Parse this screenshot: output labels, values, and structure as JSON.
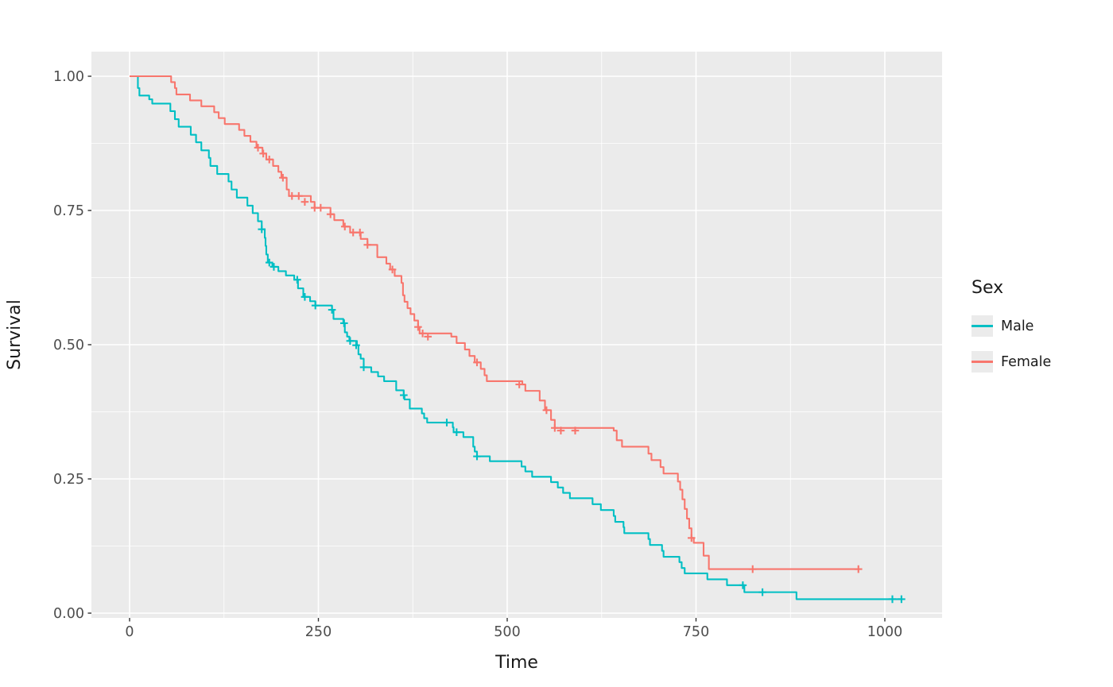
{
  "chart_data": {
    "type": "line",
    "subtype": "kaplan-meier-step-survival-curve",
    "title": "",
    "xlabel": "Time",
    "ylabel": "Survival",
    "x_ticks": [
      0,
      250,
      500,
      750,
      1000
    ],
    "y_ticks": [
      0,
      0.25,
      0.5,
      0.75,
      1
    ],
    "x_minor_ticks": [
      125,
      375,
      625,
      875
    ],
    "y_minor_ticks": [
      0.125,
      0.375,
      0.625,
      0.875
    ],
    "xlim": [
      -51,
      1075
    ],
    "ylim": [
      -0.009,
      1.046
    ],
    "grid": true,
    "panel_background": "#EBEBEB",
    "grid_color": "#FFFFFF",
    "tick_label_color": "#4D4D4D",
    "axis_title_color": "#1a1a1a",
    "legend": {
      "title": "Sex",
      "position": "right"
    },
    "series": [
      {
        "name": "Male",
        "color": "#00BFC4",
        "points": [
          [
            0,
            1.0
          ],
          [
            11,
            0.978
          ],
          [
            13,
            0.964
          ],
          [
            26,
            0.957
          ],
          [
            30,
            0.949
          ],
          [
            54,
            0.935
          ],
          [
            60,
            0.92
          ],
          [
            65,
            0.906
          ],
          [
            81,
            0.891
          ],
          [
            88,
            0.877
          ],
          [
            95,
            0.862
          ],
          [
            105,
            0.848
          ],
          [
            107,
            0.833
          ],
          [
            116,
            0.818
          ],
          [
            131,
            0.804
          ],
          [
            135,
            0.789
          ],
          [
            142,
            0.774
          ],
          [
            156,
            0.759
          ],
          [
            163,
            0.745
          ],
          [
            170,
            0.73
          ],
          [
            175,
            0.715
          ],
          [
            179,
            0.699
          ],
          [
            180,
            0.684
          ],
          [
            181,
            0.668
          ],
          [
            183,
            0.653
          ],
          [
            189,
            0.645
          ],
          [
            197,
            0.637
          ],
          [
            207,
            0.629
          ],
          [
            218,
            0.621
          ],
          [
            223,
            0.605
          ],
          [
            230,
            0.589
          ],
          [
            239,
            0.581
          ],
          [
            246,
            0.573
          ],
          [
            268,
            0.565
          ],
          [
            270,
            0.548
          ],
          [
            283,
            0.54
          ],
          [
            285,
            0.523
          ],
          [
            288,
            0.515
          ],
          [
            291,
            0.507
          ],
          [
            301,
            0.499
          ],
          [
            303,
            0.482
          ],
          [
            306,
            0.474
          ],
          [
            310,
            0.458
          ],
          [
            320,
            0.449
          ],
          [
            329,
            0.441
          ],
          [
            337,
            0.432
          ],
          [
            353,
            0.415
          ],
          [
            363,
            0.406
          ],
          [
            364,
            0.398
          ],
          [
            371,
            0.381
          ],
          [
            387,
            0.372
          ],
          [
            390,
            0.363
          ],
          [
            394,
            0.355
          ],
          [
            428,
            0.346
          ],
          [
            429,
            0.337
          ],
          [
            442,
            0.328
          ],
          [
            455,
            0.31
          ],
          [
            457,
            0.301
          ],
          [
            460,
            0.292
          ],
          [
            477,
            0.283
          ],
          [
            519,
            0.273
          ],
          [
            524,
            0.264
          ],
          [
            533,
            0.254
          ],
          [
            558,
            0.244
          ],
          [
            567,
            0.234
          ],
          [
            574,
            0.224
          ],
          [
            583,
            0.214
          ],
          [
            613,
            0.203
          ],
          [
            624,
            0.192
          ],
          [
            641,
            0.181
          ],
          [
            643,
            0.17
          ],
          [
            654,
            0.16
          ],
          [
            655,
            0.149
          ],
          [
            687,
            0.138
          ],
          [
            689,
            0.127
          ],
          [
            705,
            0.116
          ],
          [
            707,
            0.105
          ],
          [
            728,
            0.095
          ],
          [
            731,
            0.084
          ],
          [
            735,
            0.074
          ],
          [
            765,
            0.063
          ],
          [
            791,
            0.052
          ],
          [
            814,
            0.039
          ],
          [
            883,
            0.026
          ],
          [
            1022,
            0.026
          ]
        ],
        "censored": [
          [
            175,
            0.715
          ],
          [
            185,
            0.653
          ],
          [
            191,
            0.645
          ],
          [
            222,
            0.621
          ],
          [
            232,
            0.589
          ],
          [
            246,
            0.573
          ],
          [
            268,
            0.565
          ],
          [
            284,
            0.54
          ],
          [
            292,
            0.507
          ],
          [
            300,
            0.499
          ],
          [
            310,
            0.458
          ],
          [
            363,
            0.406
          ],
          [
            420,
            0.355
          ],
          [
            433,
            0.337
          ],
          [
            460,
            0.292
          ],
          [
            812,
            0.052
          ],
          [
            838,
            0.039
          ],
          [
            1010,
            0.026
          ],
          [
            1022,
            0.026
          ]
        ]
      },
      {
        "name": "Female",
        "color": "#F8766D",
        "points": [
          [
            0,
            1.0
          ],
          [
            55,
            0.989
          ],
          [
            60,
            0.978
          ],
          [
            62,
            0.966
          ],
          [
            80,
            0.955
          ],
          [
            95,
            0.944
          ],
          [
            112,
            0.933
          ],
          [
            118,
            0.922
          ],
          [
            126,
            0.911
          ],
          [
            145,
            0.9
          ],
          [
            152,
            0.889
          ],
          [
            160,
            0.878
          ],
          [
            168,
            0.867
          ],
          [
            176,
            0.856
          ],
          [
            181,
            0.845
          ],
          [
            190,
            0.833
          ],
          [
            197,
            0.822
          ],
          [
            201,
            0.811
          ],
          [
            208,
            0.789
          ],
          [
            211,
            0.777
          ],
          [
            240,
            0.766
          ],
          [
            245,
            0.755
          ],
          [
            266,
            0.743
          ],
          [
            271,
            0.732
          ],
          [
            283,
            0.72
          ],
          [
            292,
            0.709
          ],
          [
            306,
            0.697
          ],
          [
            315,
            0.686
          ],
          [
            328,
            0.663
          ],
          [
            340,
            0.651
          ],
          [
            345,
            0.64
          ],
          [
            351,
            0.628
          ],
          [
            360,
            0.615
          ],
          [
            362,
            0.592
          ],
          [
            364,
            0.58
          ],
          [
            368,
            0.568
          ],
          [
            372,
            0.557
          ],
          [
            377,
            0.545
          ],
          [
            382,
            0.533
          ],
          [
            384,
            0.521
          ],
          [
            426,
            0.515
          ],
          [
            433,
            0.503
          ],
          [
            444,
            0.491
          ],
          [
            450,
            0.479
          ],
          [
            457,
            0.467
          ],
          [
            465,
            0.455
          ],
          [
            470,
            0.443
          ],
          [
            473,
            0.432
          ],
          [
            520,
            0.426
          ],
          [
            524,
            0.414
          ],
          [
            543,
            0.396
          ],
          [
            550,
            0.378
          ],
          [
            558,
            0.36
          ],
          [
            563,
            0.345
          ],
          [
            641,
            0.34
          ],
          [
            645,
            0.322
          ],
          [
            652,
            0.31
          ],
          [
            687,
            0.297
          ],
          [
            691,
            0.285
          ],
          [
            703,
            0.272
          ],
          [
            707,
            0.26
          ],
          [
            726,
            0.245
          ],
          [
            729,
            0.23
          ],
          [
            732,
            0.212
          ],
          [
            735,
            0.194
          ],
          [
            738,
            0.176
          ],
          [
            741,
            0.158
          ],
          [
            744,
            0.14
          ],
          [
            747,
            0.131
          ],
          [
            760,
            0.107
          ],
          [
            767,
            0.082
          ],
          [
            965,
            0.082
          ]
        ],
        "censored": [
          [
            170,
            0.867
          ],
          [
            177,
            0.856
          ],
          [
            185,
            0.845
          ],
          [
            203,
            0.811
          ],
          [
            215,
            0.777
          ],
          [
            224,
            0.777
          ],
          [
            232,
            0.766
          ],
          [
            245,
            0.755
          ],
          [
            253,
            0.755
          ],
          [
            266,
            0.743
          ],
          [
            285,
            0.72
          ],
          [
            296,
            0.709
          ],
          [
            305,
            0.709
          ],
          [
            315,
            0.686
          ],
          [
            348,
            0.64
          ],
          [
            382,
            0.533
          ],
          [
            388,
            0.521
          ],
          [
            395,
            0.515
          ],
          [
            460,
            0.467
          ],
          [
            516,
            0.426
          ],
          [
            552,
            0.378
          ],
          [
            563,
            0.345
          ],
          [
            571,
            0.34
          ],
          [
            590,
            0.34
          ],
          [
            744,
            0.14
          ],
          [
            825,
            0.082
          ],
          [
            965,
            0.082
          ]
        ]
      }
    ]
  }
}
